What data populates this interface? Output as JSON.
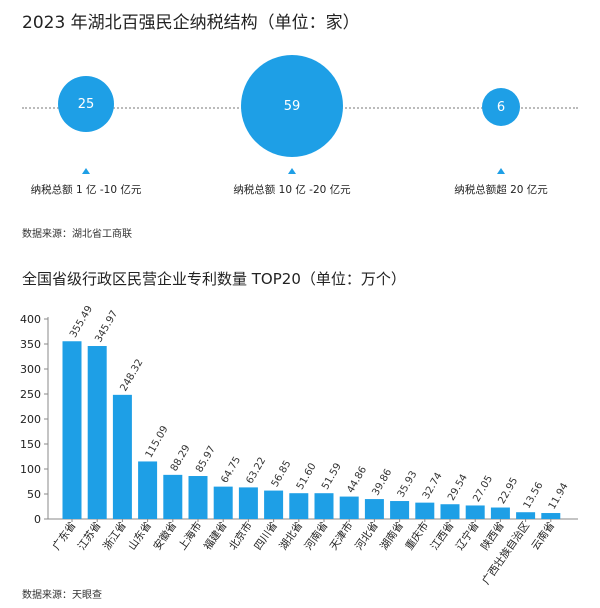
{
  "chart_data": [
    {
      "type": "bubble",
      "title": "2023 年湖北百强民企纳税结构（单位：家）",
      "categories": [
        "纳税总额 1 亿 -10 亿元",
        "纳税总额 10 亿 -20 亿元",
        "纳税总额超 20 亿元"
      ],
      "values": [
        25,
        59,
        6
      ],
      "source": "数据来源：湖北省工商联",
      "color": "#1e9fe6"
    },
    {
      "type": "bar",
      "title": "全国省级行政区民营企业专利数量 TOP20（单位：万个）",
      "categories": [
        "广东省",
        "江苏省",
        "浙江省",
        "山东省",
        "安徽省",
        "上海市",
        "福建省",
        "北京市",
        "四川省",
        "湖北省",
        "河南省",
        "天津市",
        "河北省",
        "湖南省",
        "重庆市",
        "江西省",
        "辽宁省",
        "陕西省",
        "广西壮族自治区",
        "云南省"
      ],
      "values": [
        355.49,
        345.97,
        248.32,
        115.09,
        88.29,
        85.97,
        64.75,
        63.22,
        56.85,
        51.6,
        51.59,
        44.86,
        39.86,
        35.93,
        32.74,
        29.54,
        27.05,
        22.95,
        13.56,
        11.94
      ],
      "value_labels": [
        "355.49",
        "345.97",
        "248.32",
        "115.09",
        "88.29",
        "85.97",
        "64.75",
        "63.22",
        "56.85",
        "51.60",
        "51.59",
        "44.86",
        "39.86",
        "35.93",
        "32.74",
        "29.54",
        "27.05",
        "22.95",
        "13.56",
        "11.94"
      ],
      "yticks": [
        "0",
        "50",
        "100",
        "150",
        "200",
        "250",
        "300",
        "350",
        "400"
      ],
      "ylim": [
        0,
        400
      ],
      "source": "数据来源：天眼查",
      "color": "#1e9fe6"
    }
  ]
}
